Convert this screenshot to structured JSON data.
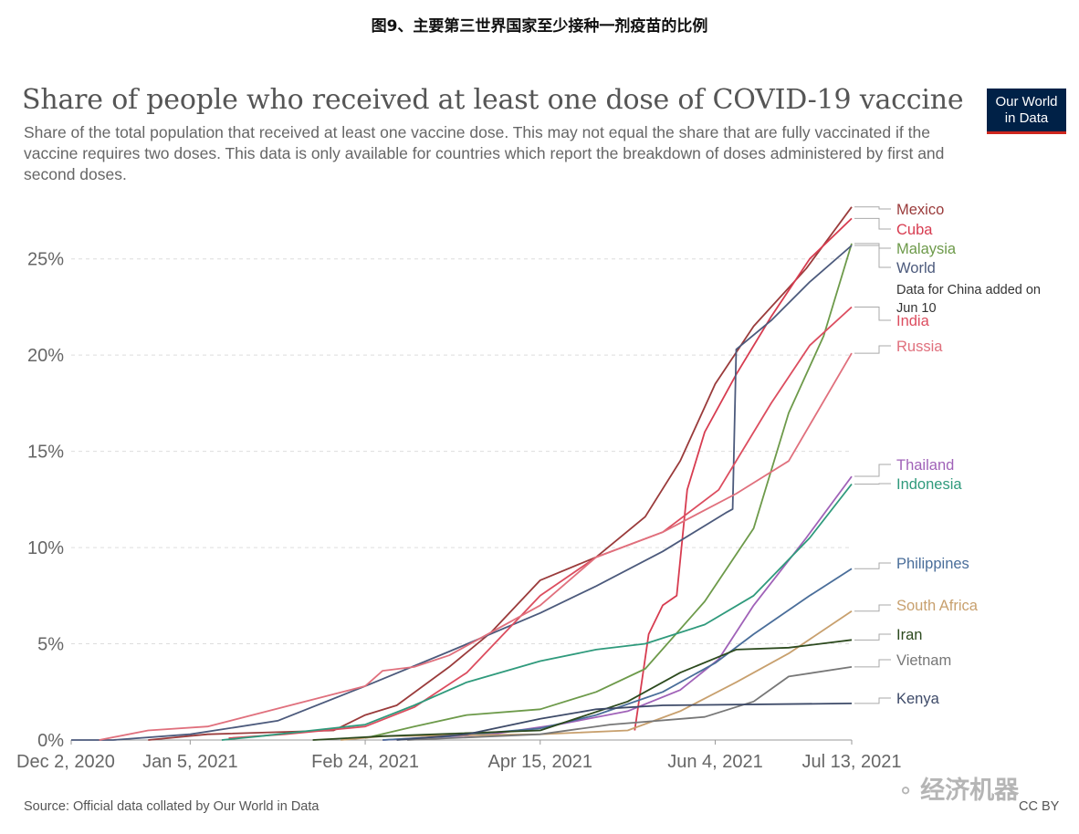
{
  "caption": "图9、主要第三世界国家至少接种一剂疫苗的比例",
  "logo": {
    "line1": "Our World",
    "line2": "in Data"
  },
  "source": "Source: Official data collated by Our World in Data",
  "license": "CC BY",
  "watermark": "经济机器",
  "chart_data": {
    "type": "line",
    "title": "Share of people who received at least one dose of COVID-19 vaccine",
    "subtitle": "Share of the total population that received at least one vaccine dose. This may not equal the share that are fully vaccinated if the vaccine requires two doses. This data is only available for countries which report the breakdown of doses administered by first and second doses.",
    "xlabel": "",
    "ylabel": "",
    "x_ticks": [
      "Dec 2, 2020",
      "Jan 5, 2021",
      "Feb 24, 2021",
      "Apr 15, 2021",
      "Jun 4, 2021",
      "Jul 13, 2021"
    ],
    "xlim": [
      "2020-12-02",
      "2021-07-13"
    ],
    "y_ticks": [
      "0%",
      "5%",
      "10%",
      "15%",
      "20%",
      "25%"
    ],
    "ylim": [
      0,
      27.5
    ],
    "grid": "horizontal dashed",
    "legend": "labels at line ends (right)",
    "series": [
      {
        "name": "Mexico",
        "color": "#9a3b3b",
        "points": [
          [
            "2020-12-24",
            0
          ],
          [
            "2021-01-10",
            0.3
          ],
          [
            "2021-02-15",
            0.5
          ],
          [
            "2021-02-24",
            1.3
          ],
          [
            "2021-03-05",
            1.8
          ],
          [
            "2021-03-20",
            3.8
          ],
          [
            "2021-04-01",
            5.6
          ],
          [
            "2021-04-15",
            8.3
          ],
          [
            "2021-05-01",
            9.5
          ],
          [
            "2021-05-15",
            11.6
          ],
          [
            "2021-05-25",
            14.5
          ],
          [
            "2021-06-04",
            18.5
          ],
          [
            "2021-06-15",
            21.5
          ],
          [
            "2021-06-30",
            24.5
          ],
          [
            "2021-07-13",
            27.7
          ]
        ]
      },
      {
        "name": "Cuba",
        "color": "#d73c50",
        "points": [
          [
            "2021-05-12",
            0.5
          ],
          [
            "2021-05-16",
            5.5
          ],
          [
            "2021-05-20",
            7
          ],
          [
            "2021-05-24",
            7.5
          ],
          [
            "2021-05-27",
            13
          ],
          [
            "2021-06-01",
            16
          ],
          [
            "2021-06-10",
            19
          ],
          [
            "2021-06-20",
            22
          ],
          [
            "2021-07-01",
            25
          ],
          [
            "2021-07-13",
            27.1
          ]
        ]
      },
      {
        "name": "Malaysia",
        "color": "#6d9a4a",
        "points": [
          [
            "2021-02-24",
            0.1
          ],
          [
            "2021-03-10",
            0.7
          ],
          [
            "2021-03-25",
            1.3
          ],
          [
            "2021-04-15",
            1.6
          ],
          [
            "2021-05-01",
            2.5
          ],
          [
            "2021-05-15",
            3.7
          ],
          [
            "2021-06-01",
            7.2
          ],
          [
            "2021-06-15",
            11
          ],
          [
            "2021-06-25",
            17
          ],
          [
            "2021-07-05",
            21
          ],
          [
            "2021-07-13",
            25.8
          ]
        ]
      },
      {
        "name": "World",
        "color": "#4c5a7c",
        "points": [
          [
            "2020-12-02",
            0
          ],
          [
            "2020-12-14",
            0
          ],
          [
            "2021-01-05",
            0.3
          ],
          [
            "2021-01-30",
            1
          ],
          [
            "2021-02-24",
            2.8
          ],
          [
            "2021-03-20",
            4.6
          ],
          [
            "2021-04-15",
            6.6
          ],
          [
            "2021-05-01",
            8
          ],
          [
            "2021-05-20",
            9.8
          ],
          [
            "2021-06-07",
            11.8
          ],
          [
            "2021-06-09",
            12
          ],
          [
            "2021-06-10",
            20.3
          ],
          [
            "2021-06-20",
            21.8
          ],
          [
            "2021-07-01",
            23.8
          ],
          [
            "2021-07-13",
            25.7
          ]
        ]
      },
      {
        "name": "India",
        "color": "#dc4d5f",
        "points": [
          [
            "2021-01-16",
            0.1
          ],
          [
            "2021-02-01",
            0.3
          ],
          [
            "2021-02-24",
            0.7
          ],
          [
            "2021-03-10",
            1.7
          ],
          [
            "2021-03-25",
            3.5
          ],
          [
            "2021-04-15",
            7.5
          ],
          [
            "2021-05-01",
            9.5
          ],
          [
            "2021-05-20",
            10.8
          ],
          [
            "2021-06-05",
            13
          ],
          [
            "2021-06-20",
            17.5
          ],
          [
            "2021-07-01",
            20.5
          ],
          [
            "2021-07-13",
            22.5
          ]
        ]
      },
      {
        "name": "Russia",
        "color": "#e0707d",
        "points": [
          [
            "2020-12-10",
            0
          ],
          [
            "2020-12-24",
            0.5
          ],
          [
            "2021-01-10",
            0.7
          ],
          [
            "2021-02-24",
            2.8
          ],
          [
            "2021-03-01",
            3.6
          ],
          [
            "2021-03-10",
            3.8
          ],
          [
            "2021-03-20",
            4.4
          ],
          [
            "2021-04-15",
            7
          ],
          [
            "2021-05-01",
            9.5
          ],
          [
            "2021-05-20",
            10.8
          ],
          [
            "2021-06-10",
            12.8
          ],
          [
            "2021-06-25",
            14.5
          ],
          [
            "2021-07-13",
            20.1
          ]
        ]
      },
      {
        "name": "Thailand",
        "color": "#a062b8",
        "points": [
          [
            "2021-03-01",
            0
          ],
          [
            "2021-04-01",
            0.3
          ],
          [
            "2021-04-20",
            0.8
          ],
          [
            "2021-05-10",
            1.5
          ],
          [
            "2021-05-25",
            2.6
          ],
          [
            "2021-06-05",
            4.2
          ],
          [
            "2021-06-15",
            7
          ],
          [
            "2021-06-30",
            10.5
          ],
          [
            "2021-07-13",
            13.7
          ]
        ]
      },
      {
        "name": "Indonesia",
        "color": "#2f9a7c",
        "points": [
          [
            "2021-01-14",
            0
          ],
          [
            "2021-01-25",
            0.2
          ],
          [
            "2021-02-24",
            0.8
          ],
          [
            "2021-03-10",
            1.8
          ],
          [
            "2021-03-25",
            3
          ],
          [
            "2021-04-15",
            4.1
          ],
          [
            "2021-05-01",
            4.7
          ],
          [
            "2021-05-15",
            5
          ],
          [
            "2021-06-01",
            6
          ],
          [
            "2021-06-15",
            7.5
          ],
          [
            "2021-07-01",
            10.5
          ],
          [
            "2021-07-13",
            13.3
          ]
        ]
      },
      {
        "name": "Philippines",
        "color": "#4a6e9a",
        "points": [
          [
            "2021-03-01",
            0
          ],
          [
            "2021-03-20",
            0.2
          ],
          [
            "2021-04-15",
            0.6
          ],
          [
            "2021-05-01",
            1.3
          ],
          [
            "2021-05-20",
            2.5
          ],
          [
            "2021-06-04",
            4
          ],
          [
            "2021-06-15",
            5.5
          ],
          [
            "2021-07-01",
            7.5
          ],
          [
            "2021-07-13",
            8.9
          ]
        ]
      },
      {
        "name": "South Africa",
        "color": "#c8a06e",
        "points": [
          [
            "2021-02-17",
            0
          ],
          [
            "2021-03-01",
            0.2
          ],
          [
            "2021-04-15",
            0.3
          ],
          [
            "2021-05-10",
            0.5
          ],
          [
            "2021-05-25",
            1.5
          ],
          [
            "2021-06-10",
            3
          ],
          [
            "2021-06-25",
            4.5
          ],
          [
            "2021-07-13",
            6.7
          ]
        ]
      },
      {
        "name": "Iran",
        "color": "#2c4a1e",
        "points": [
          [
            "2021-02-09",
            0
          ],
          [
            "2021-03-01",
            0.2
          ],
          [
            "2021-04-15",
            0.5
          ],
          [
            "2021-05-10",
            2
          ],
          [
            "2021-05-25",
            3.5
          ],
          [
            "2021-06-10",
            4.7
          ],
          [
            "2021-06-25",
            4.8
          ],
          [
            "2021-07-13",
            5.2
          ]
        ]
      },
      {
        "name": "Vietnam",
        "color": "#777777",
        "points": [
          [
            "2021-03-08",
            0
          ],
          [
            "2021-04-15",
            0.3
          ],
          [
            "2021-05-05",
            0.8
          ],
          [
            "2021-06-01",
            1.2
          ],
          [
            "2021-06-15",
            2
          ],
          [
            "2021-06-25",
            3.3
          ],
          [
            "2021-07-13",
            3.8
          ]
        ]
      },
      {
        "name": "Kenya",
        "color": "#3d4a68",
        "points": [
          [
            "2021-03-05",
            0
          ],
          [
            "2021-03-25",
            0.3
          ],
          [
            "2021-04-15",
            1.1
          ],
          [
            "2021-05-01",
            1.6
          ],
          [
            "2021-05-20",
            1.8
          ],
          [
            "2021-07-13",
            1.9
          ]
        ]
      }
    ],
    "annotations": [
      {
        "series": "World",
        "text": [
          "Data for China added on",
          "Jun 10"
        ]
      }
    ]
  }
}
